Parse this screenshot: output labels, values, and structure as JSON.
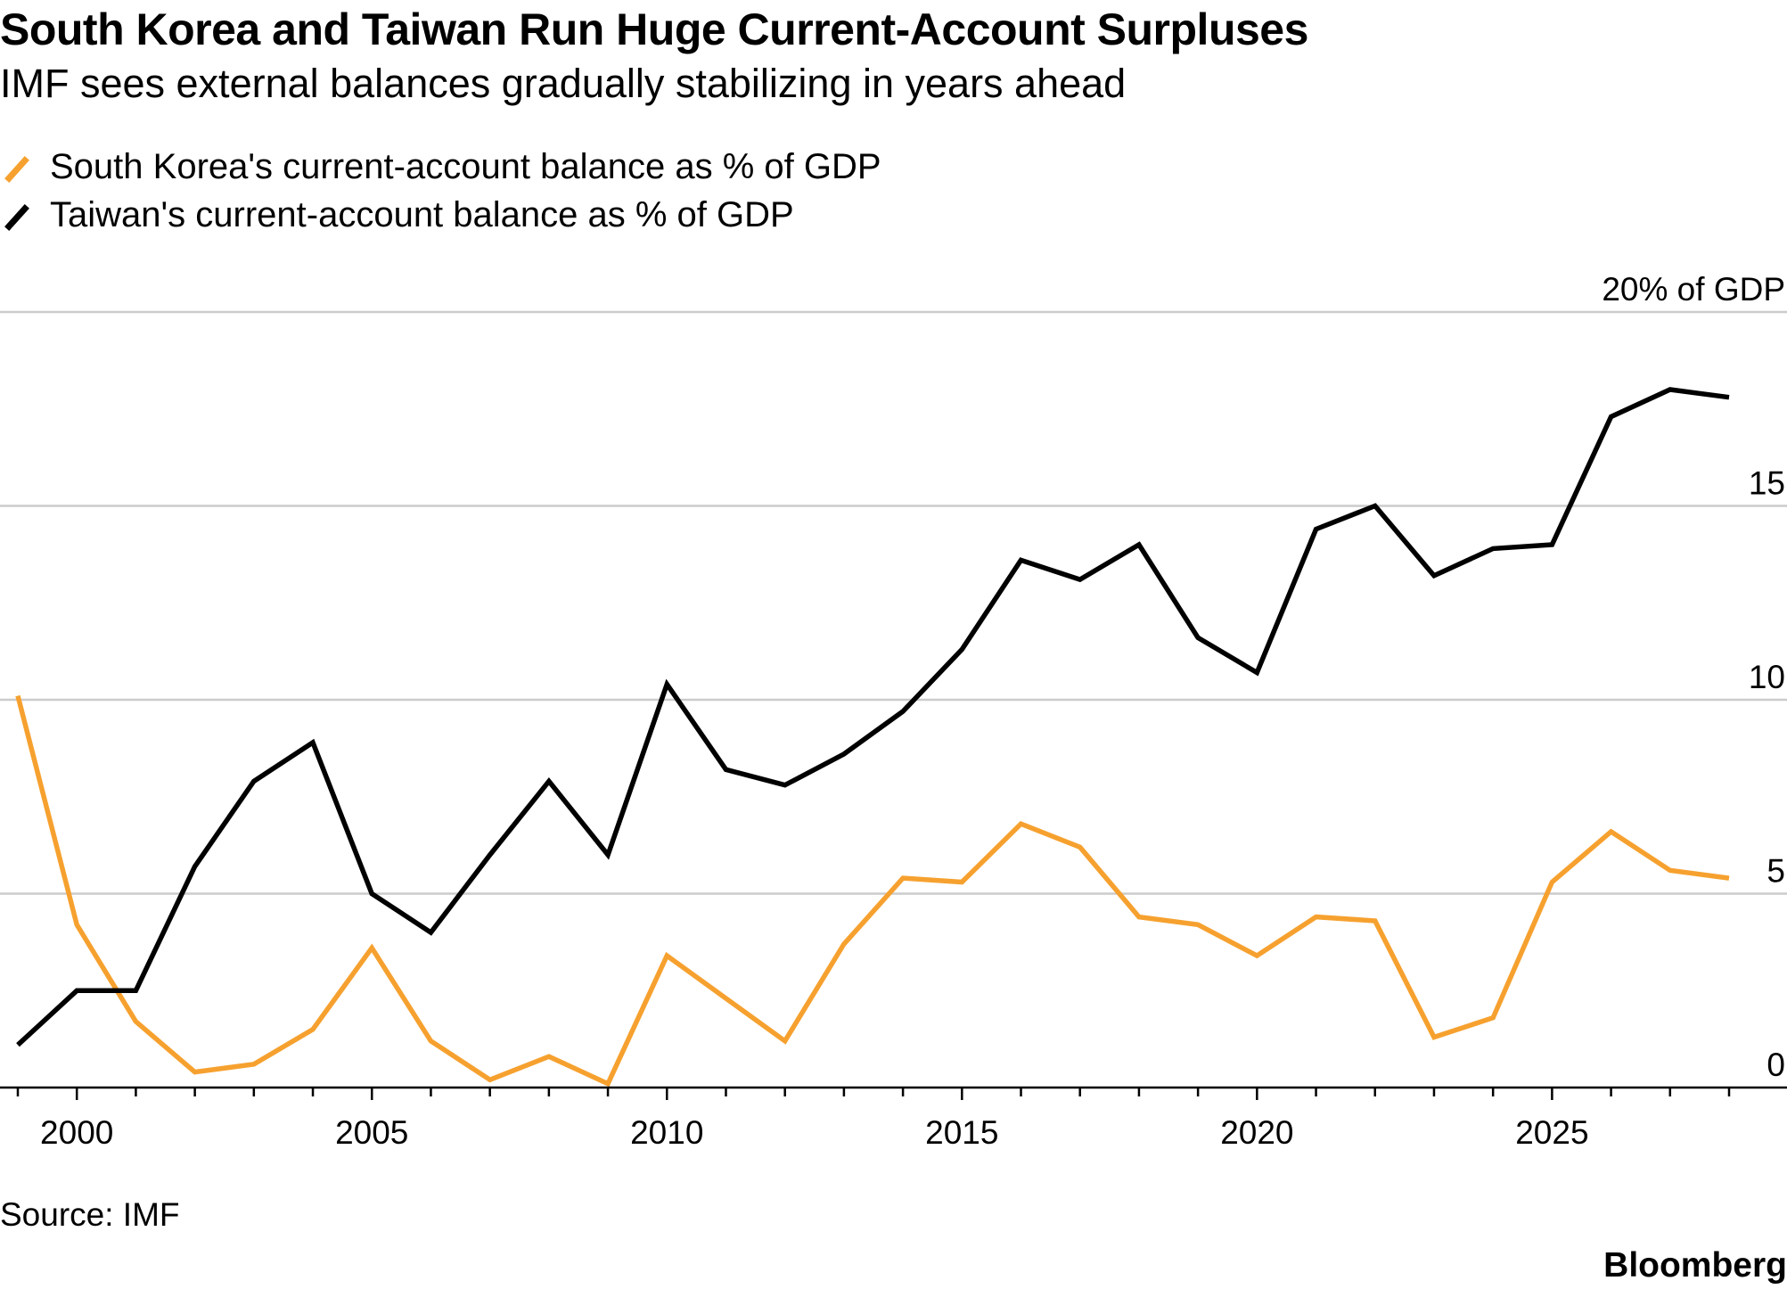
{
  "chart_data": {
    "type": "line",
    "title": "South Korea and Taiwan Run Huge Current-Account Surpluses",
    "subtitle": "IMF sees external balances gradually stabilizing in years ahead",
    "y_unit_label": "20% of GDP",
    "ylim": [
      0,
      20
    ],
    "y_ticks": [
      {
        "value": 20,
        "label": "20% of GDP"
      },
      {
        "value": 15,
        "label": "15"
      },
      {
        "value": 10,
        "label": "10"
      },
      {
        "value": 5,
        "label": "5"
      },
      {
        "value": 0,
        "label": "0"
      }
    ],
    "xlim": [
      1999,
      2028
    ],
    "x_ticks": [
      2000,
      2005,
      2010,
      2015,
      2020,
      2025
    ],
    "x": [
      1999,
      2000,
      2001,
      2002,
      2003,
      2004,
      2005,
      2006,
      2007,
      2008,
      2009,
      2010,
      2011,
      2012,
      2013,
      2014,
      2015,
      2016,
      2017,
      2018,
      2019,
      2020,
      2021,
      2022,
      2023,
      2024,
      2025,
      2026,
      2027,
      2028
    ],
    "grid": true,
    "legend_position": "top-left",
    "series": [
      {
        "name": "South Korea's current-account balance as % of GDP",
        "color": "#f6a12f",
        "values": [
          10.1,
          4.2,
          1.7,
          0.4,
          0.6,
          1.5,
          3.6,
          1.2,
          0.2,
          0.8,
          0.1,
          3.4,
          2.3,
          1.2,
          3.7,
          5.4,
          5.3,
          6.8,
          6.2,
          4.4,
          4.2,
          3.4,
          4.4,
          4.3,
          1.3,
          1.8,
          5.3,
          6.6,
          5.6,
          5.4
        ]
      },
      {
        "name": "Taiwan's current-account balance as % of GDP",
        "color": "#000000",
        "values": [
          1.1,
          2.5,
          2.5,
          5.7,
          7.9,
          8.9,
          5.0,
          4.0,
          6.0,
          7.9,
          6.0,
          10.4,
          8.2,
          7.8,
          8.6,
          9.7,
          11.3,
          13.6,
          13.1,
          14.0,
          11.6,
          10.7,
          14.4,
          15.0,
          13.2,
          13.9,
          14.0,
          17.3,
          18.0,
          17.8
        ]
      }
    ]
  },
  "source": "Source: IMF",
  "brand": "Bloomberg"
}
